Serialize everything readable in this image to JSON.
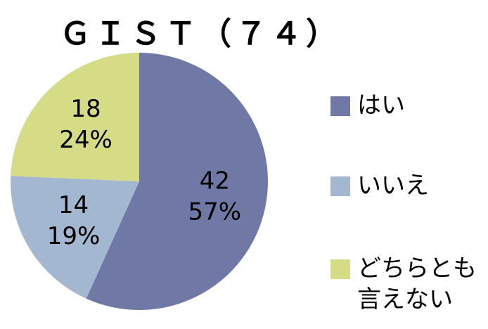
{
  "chart_data": {
    "type": "pie",
    "title": "ＧＩＳＴ（７４）",
    "categories": [
      "はい",
      "いいえ",
      "どちらとも\n言えない"
    ],
    "values": [
      42,
      14,
      18
    ],
    "percent_labels": [
      "57%",
      "19%",
      "24%"
    ],
    "colors": [
      "#7079a5",
      "#a3b8d0",
      "#d5dc85"
    ]
  }
}
